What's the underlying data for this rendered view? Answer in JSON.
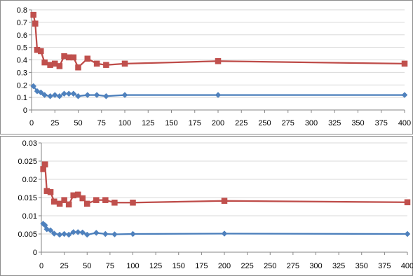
{
  "colors": {
    "series_red": "#be4b48",
    "series_red_marker": "#c0504d",
    "series_blue": "#4a7ebb",
    "series_blue_marker": "#4f81bd"
  },
  "chart_data": [
    {
      "type": "line",
      "title": "",
      "xlabel": "",
      "ylabel": "",
      "xlim": [
        0,
        400
      ],
      "ylim": [
        0,
        0.8
      ],
      "grid": "horizontal",
      "legend": "none",
      "x_ticks": [
        "0",
        "25",
        "50",
        "75",
        "100",
        "125",
        "150",
        "175",
        "200",
        "225",
        "250",
        "275",
        "300",
        "325",
        "350",
        "375",
        "400"
      ],
      "y_ticks": [
        "0",
        "0.1",
        "0.2",
        "0.3",
        "0.4",
        "0.5",
        "0.6",
        "0.7",
        "0.8"
      ],
      "series": [
        {
          "color": "#be4b48",
          "marker": "square",
          "x": [
            2,
            4,
            6,
            10,
            14,
            20,
            25,
            30,
            35,
            40,
            45,
            50,
            60,
            70,
            80,
            100,
            200,
            400
          ],
          "y": [
            0.76,
            0.69,
            0.48,
            0.47,
            0.38,
            0.36,
            0.37,
            0.35,
            0.43,
            0.42,
            0.42,
            0.34,
            0.41,
            0.37,
            0.36,
            0.37,
            0.39,
            0.37
          ]
        },
        {
          "color": "#4a7ebb",
          "marker": "diamond",
          "x": [
            2,
            6,
            10,
            14,
            20,
            25,
            30,
            35,
            40,
            45,
            50,
            60,
            70,
            80,
            100,
            200,
            400
          ],
          "y": [
            0.19,
            0.15,
            0.14,
            0.12,
            0.11,
            0.12,
            0.11,
            0.13,
            0.13,
            0.13,
            0.11,
            0.12,
            0.12,
            0.11,
            0.12,
            0.12,
            0.12
          ]
        }
      ]
    },
    {
      "type": "line",
      "title": "",
      "xlabel": "",
      "ylabel": "",
      "xlim": [
        0,
        400
      ],
      "ylim": [
        0,
        0.03
      ],
      "grid": "horizontal",
      "legend": "none",
      "x_ticks": [
        "0",
        "25",
        "50",
        "75",
        "100",
        "125",
        "150",
        "175",
        "200",
        "225",
        "250",
        "275",
        "300",
        "325",
        "350",
        "375",
        "400"
      ],
      "y_ticks": [
        "0",
        "0.005",
        "0.01",
        "0.015",
        "0.02",
        "0.025",
        "0.03"
      ],
      "series": [
        {
          "color": "#be4b48",
          "marker": "square",
          "x": [
            2,
            4,
            6,
            10,
            14,
            20,
            25,
            30,
            35,
            40,
            45,
            50,
            60,
            70,
            80,
            100,
            200,
            400
          ],
          "y": [
            0.0228,
            0.0241,
            0.0168,
            0.0165,
            0.0139,
            0.0133,
            0.0143,
            0.0131,
            0.0156,
            0.0158,
            0.0148,
            0.0133,
            0.0143,
            0.0143,
            0.0136,
            0.0136,
            0.0141,
            0.0137
          ]
        },
        {
          "color": "#4a7ebb",
          "marker": "diamond",
          "x": [
            2,
            4,
            6,
            10,
            14,
            20,
            25,
            30,
            35,
            40,
            45,
            50,
            60,
            70,
            80,
            100,
            200,
            400
          ],
          "y": [
            0.0078,
            0.0074,
            0.0063,
            0.006,
            0.0051,
            0.0048,
            0.005,
            0.0048,
            0.0055,
            0.0055,
            0.0054,
            0.0048,
            0.0053,
            0.005,
            0.0049,
            0.005,
            0.0051,
            0.005
          ]
        }
      ]
    }
  ]
}
